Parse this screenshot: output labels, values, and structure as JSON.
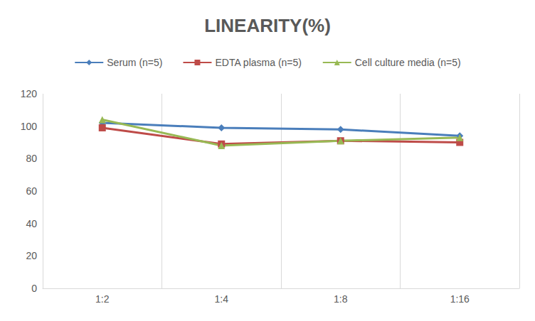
{
  "chart_data": {
    "type": "line",
    "title": "LINEARITY(%)",
    "categories": [
      "1:2",
      "1:4",
      "1:8",
      "1:16"
    ],
    "series": [
      {
        "name": "Serum (n=5)",
        "color": "#4a7ebb",
        "marker": "diamond",
        "values": [
          102,
          99,
          98,
          94
        ]
      },
      {
        "name": "EDTA plasma (n=5)",
        "color": "#be4b48",
        "marker": "square",
        "values": [
          99,
          89,
          91,
          90
        ]
      },
      {
        "name": "Cell culture media (n=5)",
        "color": "#98b954",
        "marker": "triangle",
        "values": [
          104,
          88,
          91,
          93
        ]
      }
    ],
    "ylim": [
      0,
      120
    ],
    "yticks": [
      0,
      20,
      40,
      60,
      80,
      100,
      120
    ],
    "grid": true,
    "legend": "top"
  }
}
